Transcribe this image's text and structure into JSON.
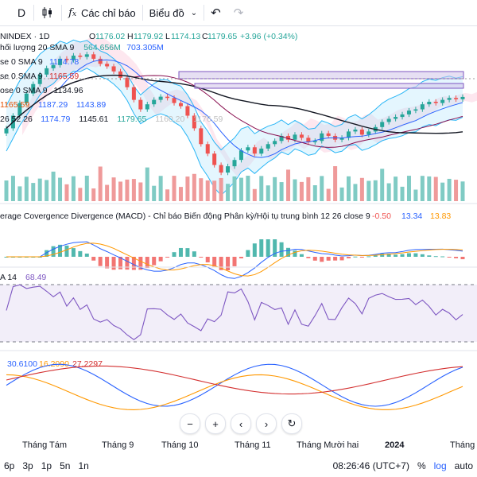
{
  "toolbar": {
    "interval": "D",
    "indicators_label": "Các chỉ báo",
    "chart_type_label": "Biểu đồ"
  },
  "legend": {
    "symbol": "NINDEX · 1D",
    "o_label": "O",
    "o_val": "1176.02",
    "h_label": "H",
    "h_val": "1179.92",
    "l_label": "L",
    "l_val": "1174.13",
    "c_label": "C",
    "c_val": "1179.65",
    "change": "+3.96 (+0.34%)",
    "rows": [
      {
        "label": "hối lượng 20 SMA 9",
        "vals": [
          "564.656M",
          "703.305M"
        ],
        "colors": [
          "#26a69a",
          "#2962ff"
        ]
      },
      {
        "label": "se 0 SMA 9",
        "vals": [
          "1174.78"
        ],
        "colors": [
          "#2962ff"
        ]
      },
      {
        "label": "se 0 SMA 9",
        "vals": [
          "1165.59"
        ],
        "colors": [
          "#d32f2f"
        ]
      },
      {
        "label": "ose 0 SMA 9",
        "vals": [
          "1134.96"
        ],
        "colors": [
          "#131722"
        ]
      },
      {
        "label": "",
        "vals": [
          "1165.59",
          "1187.29",
          "1143.89"
        ],
        "colors": [
          "#e65100",
          "#2962ff",
          "#2962ff"
        ]
      },
      {
        "label": "26 52 26",
        "vals": [
          "1174.79",
          "1145.61",
          "1179.65",
          "1160.20",
          "1176.59"
        ],
        "colors": [
          "#2962ff",
          "#131722",
          "#26a69a",
          "#c0c0c0",
          "#c0c0c0"
        ]
      }
    ]
  },
  "macd": {
    "title": "erage Covergence Divergence (MACD) - Chỉ báo Biến động Phân kỳ/Hội tụ trung bình 12 26 close 9",
    "v1": "-0.50",
    "v2": "13.34",
    "v3": "13.83",
    "colors": {
      "v1": "#ef5350",
      "v2": "#2962ff",
      "v3": "#ff9800"
    }
  },
  "rsi": {
    "label": "A 14",
    "value": "68.49"
  },
  "dmi": {
    "v1": "30.6100",
    "v2": "16.2090",
    "v3": "27.2297",
    "colors": {
      "v1": "#2962ff",
      "v2": "#ff9800",
      "v3": "#d32f2f"
    }
  },
  "timeaxis": [
    "Tháng Tám",
    "Tháng 9",
    "Tháng 10",
    "Tháng 11",
    "Tháng Mười hai",
    "2024",
    "Tháng H"
  ],
  "bottom": {
    "ranges": [
      "6p",
      "3p",
      "1p",
      "5n",
      "1n"
    ],
    "clock": "08:26:46 (UTC+7)",
    "pct": "%",
    "log": "log",
    "auto": "auto"
  },
  "chart_data": {
    "type": "candlestick",
    "symbol": "NINDEX",
    "interval": "1D",
    "last": {
      "open": 1176.02,
      "high": 1179.92,
      "low": 1174.13,
      "close": 1179.65,
      "change": 3.96,
      "change_pct": 0.34
    },
    "closes": [
      1130,
      1150,
      1170,
      1185,
      1200,
      1215,
      1225,
      1230,
      1240,
      1238,
      1245,
      1243,
      1247,
      1240,
      1232,
      1228,
      1220,
      1210,
      1195,
      1175,
      1160,
      1168,
      1175,
      1180,
      1178,
      1170,
      1165,
      1150,
      1130,
      1105,
      1090,
      1072,
      1060,
      1070,
      1080,
      1095,
      1100,
      1090,
      1098,
      1105,
      1110,
      1118,
      1112,
      1120,
      1115,
      1108,
      1110,
      1122,
      1118,
      1112,
      1115,
      1125,
      1128,
      1120,
      1125,
      1132,
      1140,
      1145,
      1148,
      1152,
      1158,
      1160,
      1168,
      1172,
      1170,
      1175,
      1178,
      1176,
      1179.65
    ]
  }
}
